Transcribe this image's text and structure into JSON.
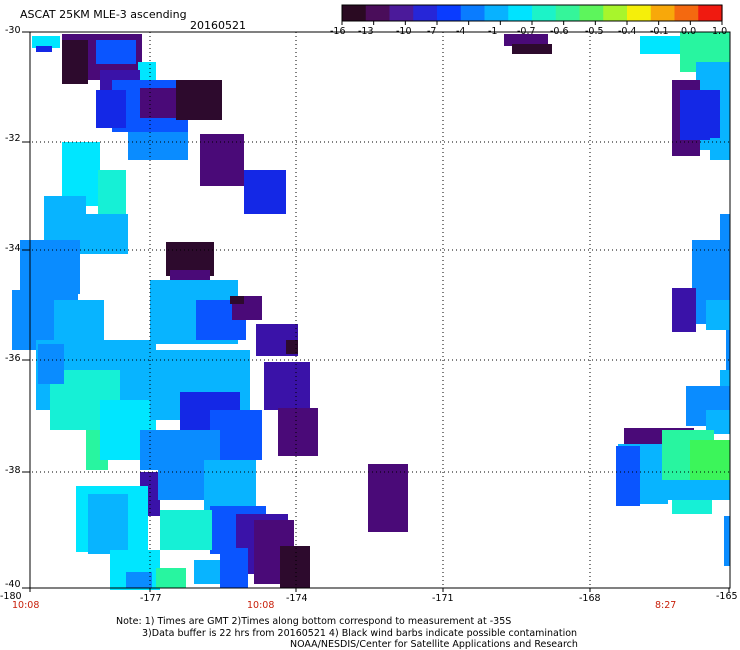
{
  "header": {
    "title": "ASCAT 25KM MLE-3 ascending",
    "date": "20160521"
  },
  "colorbar": {
    "colors": [
      "#2a0a22",
      "#4a0d5a",
      "#4b1a9a",
      "#2626d8",
      "#0a3cff",
      "#0a7cff",
      "#08b2ff",
      "#00e3ff",
      "#1cf3c8",
      "#35f59a",
      "#5df55c",
      "#a8f52c",
      "#f5ef0a",
      "#f8a80a",
      "#f46910",
      "#f01a10"
    ],
    "tick_labels": [
      "-16",
      "-13",
      "-10",
      "-7",
      "-4",
      "-1",
      "-0.7",
      "-0.6",
      "-0.5",
      "-0.4",
      "-0.1",
      "0.0",
      "1.0"
    ]
  },
  "axes": {
    "y_tick_labels": [
      "-30",
      "-32",
      "-34",
      "-36",
      "-38",
      "-40"
    ],
    "x_tick_labels": [
      "-180",
      "-177",
      "-174",
      "-171",
      "-168",
      "-165"
    ],
    "time_labels": [
      "10:08",
      "10:08",
      "8:27"
    ],
    "time_label_color": "#c8200a"
  },
  "palette": {
    "dark": "#2d0a2d",
    "purple": "#4a0a78",
    "indigo": "#3a12a8",
    "blue": "#1428e6",
    "royal": "#0a55ff",
    "azure": "#0a8cff",
    "sky": "#08b4ff",
    "cyan": "#00e6ff",
    "aqua": "#16f0d6",
    "spring": "#28f5a0",
    "green": "#3cf55a"
  },
  "notes": {
    "line1": "Note: 1) Times are GMT 2)Times along bottom correspond to measurement at -35S",
    "line2": "3)Data buffer is 22 hrs from 20160521 4) Black wind barbs indicate possible contamination",
    "line3": "NOAA/NESDIS/Center for Satellite Applications and Research"
  }
}
